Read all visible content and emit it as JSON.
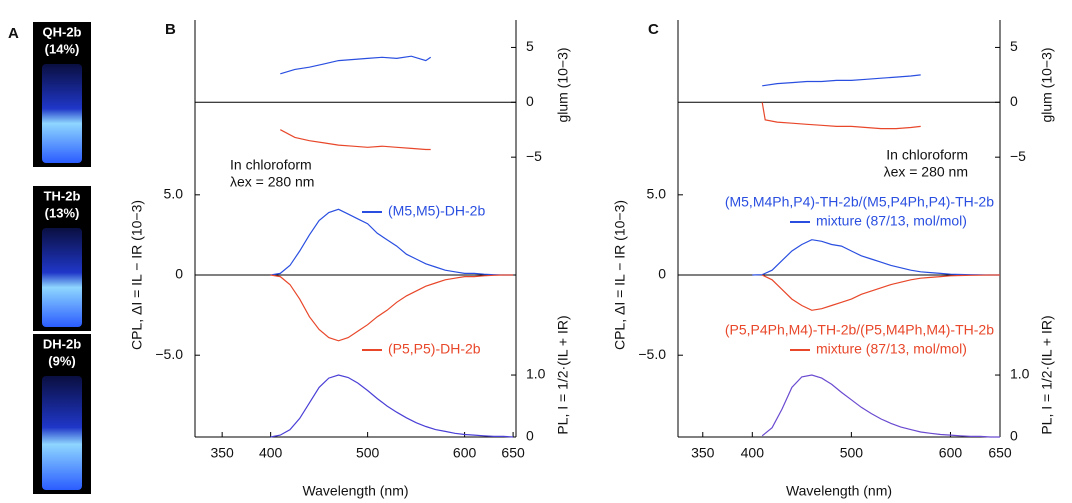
{
  "panel_a": {
    "letter": "A",
    "vials": [
      {
        "name": "QH-2b",
        "yield": "(14%)"
      },
      {
        "name": "TH-2b",
        "yield": "(13%)"
      },
      {
        "name": "DH-2b",
        "yield": "(9%)"
      }
    ]
  },
  "chart_data": [
    {
      "type": "line",
      "panel": "B",
      "xlabel": "Wavelength (nm)",
      "ylabel": "CPL, ΔI = IL − IR (10−3)",
      "y2label": "glum (10−3)",
      "y3label": "PL, I = 1/2·(IL + IR)",
      "annotations": [
        "In chloroform",
        "λex = 280 nm"
      ],
      "xlim": [
        322,
        653
      ],
      "xticks": [
        350,
        400,
        500,
        600,
        650
      ],
      "ylim": [
        -10.1,
        15.9
      ],
      "yticks": [
        {
          "value": 5,
          "label": "5.0"
        },
        0,
        {
          "value": -5,
          "label": "−5.0"
        }
      ],
      "y2lim": [
        -30.5,
        7.5
      ],
      "y2ticks": [
        5,
        0,
        {
          "value": -5,
          "label": "−5"
        }
      ],
      "y3lim": [
        0,
        6.73
      ],
      "y3ticks": [
        {
          "value": 1,
          "label": "1.0"
        },
        0
      ],
      "series": [
        {
          "axis": "y2",
          "color": "#2a4fe0",
          "x": [
            410,
            425,
            440,
            455,
            470,
            485,
            500,
            515,
            530,
            545,
            560,
            565
          ],
          "values": [
            2.6,
            3.0,
            3.2,
            3.5,
            3.8,
            3.9,
            4.0,
            4.1,
            4.0,
            4.2,
            3.8,
            4.1
          ]
        },
        {
          "axis": "y2",
          "color": "#e8472a",
          "x": [
            410,
            425,
            440,
            455,
            470,
            485,
            500,
            515,
            530,
            545,
            560,
            565
          ],
          "values": [
            -2.5,
            -3.2,
            -3.5,
            -3.7,
            -3.9,
            -4.0,
            -4.1,
            -4.0,
            -4.1,
            -4.2,
            -4.3,
            -4.3
          ]
        },
        {
          "axis": "y",
          "name": "(M5,M5)-DH-2b",
          "color": "#2a4fe0",
          "x": [
            400,
            410,
            420,
            430,
            440,
            450,
            460,
            470,
            480,
            490,
            500,
            510,
            520,
            530,
            540,
            550,
            560,
            570,
            580,
            590,
            600,
            610,
            620,
            630,
            640,
            650
          ],
          "values": [
            0,
            0.1,
            0.6,
            1.5,
            2.5,
            3.4,
            3.9,
            4.1,
            3.8,
            3.5,
            3.2,
            2.6,
            2.2,
            1.8,
            1.3,
            1.0,
            0.7,
            0.5,
            0.3,
            0.2,
            0.1,
            0.1,
            0.05,
            0.02,
            0,
            0
          ]
        },
        {
          "axis": "y",
          "name": "(P5,P5)-DH-2b",
          "color": "#e8472a",
          "x": [
            400,
            410,
            420,
            430,
            440,
            450,
            460,
            470,
            480,
            490,
            500,
            510,
            520,
            530,
            540,
            550,
            560,
            570,
            580,
            590,
            600,
            610,
            620,
            630,
            640,
            650
          ],
          "values": [
            0,
            -0.1,
            -0.6,
            -1.5,
            -2.6,
            -3.4,
            -3.9,
            -4.1,
            -3.9,
            -3.5,
            -3.1,
            -2.6,
            -2.2,
            -1.7,
            -1.3,
            -1.0,
            -0.7,
            -0.5,
            -0.3,
            -0.2,
            -0.1,
            -0.1,
            -0.05,
            -0.02,
            0,
            0
          ]
        },
        {
          "axis": "y3",
          "color": "#4a3fd6",
          "x": [
            400,
            410,
            420,
            430,
            440,
            450,
            460,
            470,
            480,
            490,
            500,
            510,
            520,
            530,
            540,
            550,
            560,
            570,
            580,
            590,
            600,
            610,
            620,
            630,
            640,
            650
          ],
          "values": [
            0,
            0.03,
            0.12,
            0.3,
            0.55,
            0.8,
            0.95,
            1.0,
            0.96,
            0.87,
            0.75,
            0.62,
            0.5,
            0.4,
            0.31,
            0.23,
            0.17,
            0.12,
            0.09,
            0.06,
            0.04,
            0.03,
            0.02,
            0.01,
            0.01,
            0
          ]
        }
      ]
    },
    {
      "type": "line",
      "panel": "C",
      "xlabel": "Wavelength (nm)",
      "ylabel": "CPL, ΔI = IL − IR (10−3)",
      "y2label": "glum (10−3)",
      "y3label": "PL, I = 1/2·(IL + IR)",
      "annotations": [
        "In chloroform",
        "λex = 280 nm"
      ],
      "xlim": [
        325,
        650
      ],
      "xticks": [
        350,
        400,
        500,
        600,
        650
      ],
      "ylim": [
        -10.1,
        15.9
      ],
      "yticks": [
        {
          "value": 5,
          "label": "5.0"
        },
        0,
        {
          "value": -5,
          "label": "−5.0"
        }
      ],
      "y2lim": [
        -30.5,
        7.5
      ],
      "y2ticks": [
        5,
        0,
        {
          "value": -5,
          "label": "−5"
        }
      ],
      "y3lim": [
        0,
        6.73
      ],
      "y3ticks": [
        {
          "value": 1,
          "label": "1.0"
        },
        0
      ],
      "series": [
        {
          "axis": "y2",
          "color": "#2a4fe0",
          "x": [
            410,
            425,
            440,
            455,
            470,
            485,
            500,
            515,
            530,
            545,
            560,
            570
          ],
          "values": [
            1.5,
            1.7,
            1.8,
            1.9,
            1.9,
            2.0,
            2.0,
            2.1,
            2.2,
            2.3,
            2.4,
            2.5
          ]
        },
        {
          "axis": "y2",
          "color": "#e8472a",
          "x": [
            410,
            413,
            425,
            440,
            455,
            470,
            485,
            500,
            515,
            530,
            545,
            560,
            570
          ],
          "values": [
            0,
            -1.6,
            -1.8,
            -1.9,
            -2.0,
            -2.1,
            -2.2,
            -2.2,
            -2.3,
            -2.4,
            -2.4,
            -2.3,
            -2.2
          ]
        },
        {
          "axis": "y",
          "label": "(M5,M4Ph,P4)-TH-2b/(M5,P4Ph,P4)-TH-2b",
          "name": "mixture (87/13, mol/mol)",
          "color": "#2a4fe0",
          "x": [
            400,
            410,
            420,
            430,
            440,
            450,
            460,
            470,
            480,
            490,
            500,
            510,
            520,
            530,
            540,
            550,
            560,
            570,
            580,
            590,
            600,
            610,
            620,
            630,
            640,
            650
          ],
          "values": [
            0,
            0.02,
            0.3,
            0.9,
            1.5,
            1.9,
            2.2,
            2.1,
            1.9,
            1.8,
            1.5,
            1.2,
            1.0,
            0.8,
            0.6,
            0.45,
            0.3,
            0.2,
            0.15,
            0.1,
            0.05,
            0.03,
            0.02,
            0.01,
            0,
            0
          ]
        },
        {
          "axis": "y",
          "label": "(P5,P4Ph,M4)-TH-2b/(P5,M4Ph,M4)-TH-2b",
          "name": "mixture (87/13, mol/mol)",
          "color": "#e8472a",
          "x": [
            410,
            420,
            430,
            440,
            450,
            460,
            470,
            480,
            490,
            500,
            510,
            520,
            530,
            540,
            550,
            560,
            570,
            580,
            590,
            600,
            610,
            620,
            630,
            640,
            650
          ],
          "values": [
            0,
            -0.3,
            -0.9,
            -1.5,
            -1.9,
            -2.2,
            -2.1,
            -1.9,
            -1.7,
            -1.5,
            -1.2,
            -1.0,
            -0.8,
            -0.6,
            -0.45,
            -0.3,
            -0.2,
            -0.15,
            -0.1,
            -0.05,
            -0.03,
            -0.02,
            -0.01,
            0,
            0
          ]
        },
        {
          "axis": "y3",
          "color": "#6a4ad0",
          "x": [
            410,
            420,
            430,
            440,
            450,
            460,
            470,
            480,
            490,
            500,
            510,
            520,
            530,
            540,
            550,
            560,
            570,
            580,
            590,
            600,
            610,
            620,
            630,
            640,
            650
          ],
          "values": [
            0.02,
            0.15,
            0.45,
            0.8,
            0.97,
            1.0,
            0.95,
            0.85,
            0.72,
            0.6,
            0.48,
            0.38,
            0.29,
            0.22,
            0.16,
            0.12,
            0.08,
            0.06,
            0.04,
            0.03,
            0.02,
            0.01,
            0.01,
            0,
            0
          ]
        }
      ]
    }
  ]
}
